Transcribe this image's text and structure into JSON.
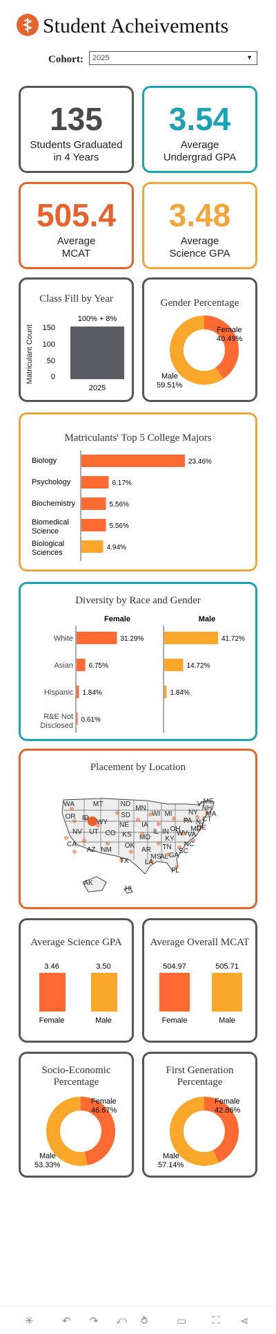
{
  "header": {
    "title": "Student Acheivements",
    "logo_icon": "caduceus-logo"
  },
  "cohort": {
    "label": "Cohort:",
    "value": "2025"
  },
  "colors": {
    "orange": "#ff6a33",
    "amber": "#f9a72b",
    "teal": "#1aa3b3",
    "dark": "#5a5c62",
    "border_dark": "#555555",
    "border_orange": "#e8622b",
    "border_amber": "#f4a53a"
  },
  "kpis": {
    "graduated": {
      "value": "135",
      "label1": "Students Graduated",
      "label2": "in 4 Years"
    },
    "gpa": {
      "value": "3.54",
      "label1": "Average",
      "label2": "Undergrad GPA"
    },
    "mcat": {
      "value": "505.4",
      "label1": "Average",
      "label2": "MCAT"
    },
    "sci_gpa": {
      "value": "3.48",
      "label1": "Average",
      "label2": "Science GPA"
    }
  },
  "class_fill": {
    "title": "Class Fill by Year",
    "ylabel": "Matriculant Count",
    "ticks": [
      "150",
      "100",
      "50",
      "0"
    ],
    "bar_label": "100% + 8%",
    "category": "2025",
    "value": 162
  },
  "gender_pct": {
    "title": "Gender Percentage",
    "female_label": "Female",
    "female_value": "40.49%",
    "male_label": "Male",
    "male_value": "59.51%"
  },
  "majors": {
    "title": "Matriculants' Top 5 College Majors",
    "items": [
      {
        "name": "Biology",
        "value": "23.46%"
      },
      {
        "name": "Psychology",
        "value": "6.17%"
      },
      {
        "name": "Biochemistry",
        "value": "5.56%"
      },
      {
        "name": "Biomedical Science",
        "value": "5.56%"
      },
      {
        "name": "Biological Sciences",
        "value": "4.94%"
      }
    ]
  },
  "diversity": {
    "title": "Diversity by Race and Gender",
    "female_header": "Female",
    "male_header": "Male",
    "rows": [
      {
        "name": "White",
        "female": "31.29%",
        "male": "41.72%"
      },
      {
        "name": "Asian",
        "female": "6.75%",
        "male": "14.72%"
      },
      {
        "name": "Hispanic",
        "female": "1.84%",
        "male": "1.84%"
      },
      {
        "name": "R&E Not Disclosed",
        "female": "0.61%",
        "male": ""
      }
    ]
  },
  "placement": {
    "title": "Placement by Location",
    "states": [
      "WA",
      "MT",
      "ND",
      "MN",
      "OR",
      "ID",
      "SD",
      "WI",
      "MI",
      "NY",
      "ME",
      "WY",
      "NE",
      "IA",
      "IL",
      "IN",
      "OH",
      "PA",
      "NJ",
      "NV",
      "UT",
      "CO",
      "KS",
      "MO",
      "KY",
      "WV",
      "VA",
      "CA",
      "AZ",
      "NM",
      "OK",
      "TN",
      "NC",
      "AR",
      "MS",
      "AL",
      "GA",
      "SC",
      "TX",
      "LA",
      "FL",
      "AK",
      "HI",
      "VT",
      "NH",
      "MA",
      "CT",
      "MD",
      "DE"
    ]
  },
  "avg_sci_gpa": {
    "title": "Average Science GPA",
    "female_value": "3.46",
    "male_value": "3.50",
    "female_label": "Female",
    "male_label": "Male"
  },
  "avg_mcat": {
    "title": "Average Overall MCAT",
    "female_value": "504.97",
    "male_value": "505.71",
    "female_label": "Female",
    "male_label": "Male"
  },
  "socio": {
    "title1": "Socio-Economic",
    "title2": "Percentage",
    "female_label": "Female",
    "female_value": "46.67%",
    "male_label": "Male",
    "male_value": "53.33%"
  },
  "firstgen": {
    "title1": "First Generation",
    "title2": "Percentage",
    "female_label": "Female",
    "female_value": "42.86%",
    "male_label": "Male",
    "male_value": "57.14%"
  },
  "toolbar": {
    "icons": [
      "tableau-logo-icon",
      "undo-icon",
      "redo-icon",
      "revert-icon",
      "refresh-icon",
      "device-layout-icon",
      "fullscreen-icon",
      "share-icon"
    ]
  }
}
